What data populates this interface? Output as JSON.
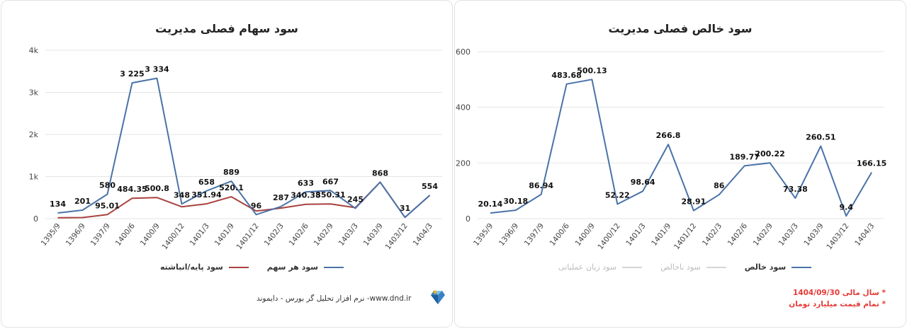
{
  "left_panel": {
    "title": "سود سهام فصلی مدیریت",
    "footer": "www.dnd.ir- نرم افزار تحلیل گر بورس - دایموند",
    "legend": [
      {
        "label": "سود هر سهم",
        "color": "#4a73a8"
      },
      {
        "label": "سود پایه/انباشته",
        "color": "#a8423f"
      }
    ]
  },
  "right_panel": {
    "title": "سود خالص فصلی مدیریت",
    "legend": [
      {
        "label": "سود خالص",
        "color": "#4a73a8",
        "muted": false
      },
      {
        "label": "سود ناخالص",
        "color": "#d6d6d6",
        "muted": true
      },
      {
        "label": "سود زیان عملیاتی",
        "color": "#d6d6d6",
        "muted": true
      }
    ],
    "notes": [
      "* سال مالی 1404/09/30",
      "* تمام قیمت میلیارد تومان"
    ]
  },
  "chart_data": [
    {
      "type": "line",
      "title": "سود سهام فصلی مدیریت",
      "categories": [
        "1395/9",
        "1396/9",
        "1397/9",
        "1400/6",
        "1400/9",
        "1400/12",
        "1401/3",
        "1401/9",
        "1401/12",
        "1402/3",
        "1402/6",
        "1402/9",
        "1403/3",
        "1403/9",
        "1403/12",
        "1404/3"
      ],
      "ylim": [
        0,
        4000
      ],
      "yticks": [
        0,
        1000,
        2000,
        3000,
        4000
      ],
      "ytick_labels": [
        "0",
        "1k",
        "2k",
        "3k",
        "4k"
      ],
      "grid": true,
      "legend_position": "bottom",
      "series": [
        {
          "name": "سود هر سهم",
          "color": "#4a73a8",
          "values": [
            134,
            201,
            580,
            3225,
            3334,
            348,
            658,
            889,
            96,
            287,
            633,
            667,
            245,
            868,
            31,
            554
          ],
          "labels": [
            "134",
            "201",
            "580",
            "3 225",
            "3 334",
            "348",
            "658",
            "889",
            "96",
            "287",
            "633",
            "667",
            "245",
            "868",
            "31",
            "554"
          ]
        },
        {
          "name": "سود پایه/انباشته",
          "color": "#a8423f",
          "values": [
            20,
            25,
            95.01,
            484.35,
            500.8,
            280,
            351.94,
            520.1,
            180,
            250,
            340.38,
            350.31,
            260,
            868,
            31,
            554
          ],
          "labels": [
            "",
            "",
            "95.01",
            "484.35",
            "500.8",
            "",
            "351.94",
            "520.1",
            "",
            "",
            "340.38",
            "350.31",
            "",
            "",
            "",
            ""
          ]
        }
      ]
    },
    {
      "type": "line",
      "title": "سود خالص فصلی مدیریت",
      "categories": [
        "1395/9",
        "1396/9",
        "1397/9",
        "1400/6",
        "1400/9",
        "1400/12",
        "1401/3",
        "1401/9",
        "1401/12",
        "1402/3",
        "1402/6",
        "1402/9",
        "1403/3",
        "1403/9",
        "1403/12",
        "1404/3"
      ],
      "ylim": [
        0,
        600
      ],
      "yticks": [
        0,
        200,
        400,
        600
      ],
      "ytick_labels": [
        "0",
        "200",
        "400",
        "600"
      ],
      "grid": true,
      "legend_position": "bottom",
      "series": [
        {
          "name": "سود خالص",
          "color": "#4a73a8",
          "values": [
            20.14,
            30.18,
            86.94,
            483.68,
            500.13,
            52.22,
            98.64,
            266.8,
            28.91,
            86,
            189.77,
            200.22,
            73.38,
            260.51,
            9.4,
            166.15
          ],
          "labels": [
            "20.14",
            "30.18",
            "86.94",
            "483.68",
            "500.13",
            "52.22",
            "98.64",
            "266.8",
            "28.91",
            "86",
            "189.77",
            "200.22",
            "73.38",
            "260.51",
            "9.4",
            "166.15"
          ]
        }
      ]
    }
  ]
}
